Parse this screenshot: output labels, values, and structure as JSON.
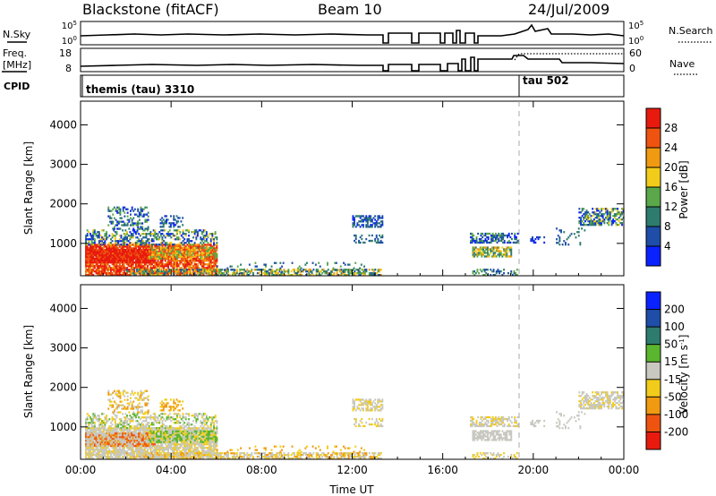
{
  "header": {
    "station": "Blackstone (fitACF)",
    "beam": "Beam 10",
    "date": "24/Jul/2009"
  },
  "mini_panels": {
    "nsky_label": "N.Sky",
    "nsky_ticks": [
      "10^5",
      "10^0"
    ],
    "nsearch_label": "N.Search",
    "nsearch_ticks": [
      "10^5",
      "10^0"
    ],
    "freq_label_1": "Freq.",
    "freq_label_2": "[MHz]",
    "freq_ticks": [
      "18",
      "8"
    ],
    "nave_label": "Nave",
    "nave_ticks": [
      "60",
      "0"
    ],
    "cpid_label": "CPID",
    "cpid_names": [
      "themis (tau) 3310",
      "tau 502"
    ]
  },
  "colors": {
    "power": [
      "#0a22ff",
      "#1e4ea8",
      "#2e7c6e",
      "#5aa84a",
      "#f2cc1a",
      "#f09a12",
      "#ee5410",
      "#e81a0e"
    ],
    "velocity": [
      "#e81a0e",
      "#ee5410",
      "#f09a12",
      "#f2cc1a",
      "#c8c8c0",
      "#5ab62e",
      "#2e7c6e",
      "#1e4ea8",
      "#0a22ff"
    ]
  },
  "chart_data": [
    {
      "type": "heatmap",
      "title": "",
      "xlabel": "",
      "ylabel": "Slant Range [km]",
      "x_ticks": [
        "00:00",
        "04:00",
        "08:00",
        "12:00",
        "16:00",
        "20:00",
        "00:00"
      ],
      "y_ticks": [
        "1000",
        "2000",
        "3000",
        "4000"
      ],
      "xlim": [
        0,
        24
      ],
      "ylim": [
        180,
        4600
      ],
      "colorbar_label": "Power [dB]",
      "colorbar_ticks": [
        "4",
        "8",
        "12",
        "16",
        "20",
        "24",
        "28"
      ]
    },
    {
      "type": "heatmap",
      "title": "",
      "xlabel": "Time UT",
      "ylabel": "Slant Range [km]",
      "x_ticks": [
        "00:00",
        "04:00",
        "08:00",
        "12:00",
        "16:00",
        "20:00",
        "00:00"
      ],
      "y_ticks": [
        "1000",
        "2000",
        "3000",
        "4000"
      ],
      "xlim": [
        0,
        24
      ],
      "ylim": [
        180,
        4600
      ],
      "colorbar_label": "Velocity [m s^-1]",
      "colorbar_ticks": [
        "200",
        "100",
        "50",
        "15",
        "-15",
        "-50",
        "-100",
        "-200"
      ]
    }
  ]
}
